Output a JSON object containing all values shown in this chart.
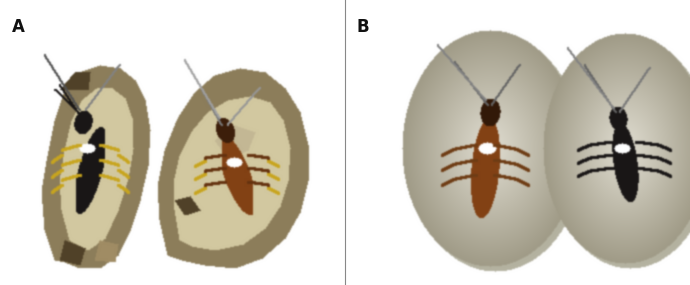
{
  "fig_width": 6.9,
  "fig_height": 2.85,
  "dpi": 100,
  "bg_color": "#ffffff",
  "border_color": "#2a2a2a",
  "label_A": "A",
  "label_B": "B",
  "label_fontsize": 12,
  "label_color": "#111111",
  "shale_base": [
    185,
    170,
    130
  ],
  "shale_light": [
    210,
    200,
    160
  ],
  "shale_dark": [
    140,
    125,
    90
  ],
  "shale_very_dark": [
    80,
    65,
    40
  ],
  "greywacke_base": [
    200,
    196,
    175
  ],
  "greywacke_light": [
    225,
    222,
    210
  ],
  "greywacke_dark": [
    160,
    155,
    135
  ],
  "black_insect_rgb": [
    25,
    22,
    22
  ],
  "brown_insect_rgb": [
    130,
    65,
    20
  ],
  "white_rgb": [
    255,
    255,
    255
  ],
  "yellow_rgb": [
    200,
    165,
    30
  ],
  "bg_rgb": [
    255,
    255,
    255
  ]
}
